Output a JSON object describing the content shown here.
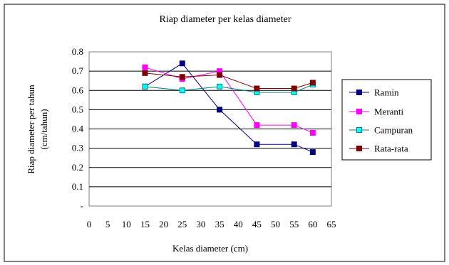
{
  "chart_data": {
    "type": "line",
    "title": "Riap diameter per kelas diameter",
    "xlabel": "Kelas diameter (cm)",
    "ylabel_lines": [
      "Riap diameter per tahun",
      "(cm/tahun)"
    ],
    "x_ticks": [
      "0",
      "5",
      "10",
      "15",
      "20",
      "25",
      "30",
      "35",
      "40",
      "45",
      "50",
      "55",
      "60",
      "65"
    ],
    "y_ticks": [
      "-",
      "0.1",
      "0.2",
      "0.3",
      "0.4",
      "0.5",
      "0.6",
      "0.7",
      "0.8"
    ],
    "xlim": [
      0,
      65
    ],
    "ylim": [
      0,
      0.8
    ],
    "grid": "horizontal",
    "legend_position": "right",
    "x": [
      15,
      25,
      35,
      45,
      55,
      60
    ],
    "series": [
      {
        "name": "Ramin",
        "color": "#000080",
        "marker_fill": "#000080",
        "values": [
          0.62,
          0.74,
          0.5,
          0.32,
          0.32,
          0.28
        ]
      },
      {
        "name": "Meranti",
        "color": "#FF00FF",
        "marker_fill": "#FF00FF",
        "values": [
          0.72,
          0.66,
          0.7,
          0.42,
          0.42,
          0.38
        ]
      },
      {
        "name": "Campuran",
        "color": "#008080",
        "marker_fill": "#00FFFF",
        "values": [
          0.62,
          0.6,
          0.62,
          0.59,
          0.59,
          0.63
        ]
      },
      {
        "name": "Rata-rata",
        "color": "#800000",
        "marker_fill": "#800000",
        "values": [
          0.69,
          0.67,
          0.68,
          0.61,
          0.61,
          0.64
        ]
      }
    ]
  }
}
